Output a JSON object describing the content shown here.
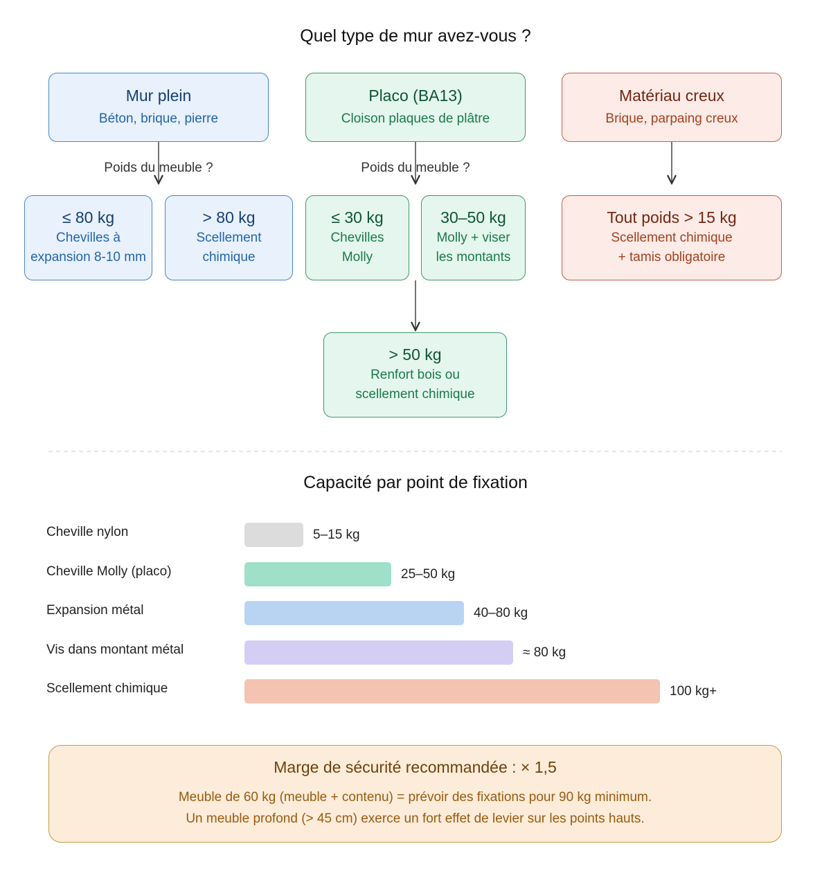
{
  "flowchart": {
    "title": "Quel type de mur avez-vous ?",
    "walls": [
      {
        "title": "Mur plein",
        "subtitle": "Béton, brique, pierre"
      },
      {
        "title": "Placo (BA13)",
        "subtitle": "Cloison plaques de plâtre"
      },
      {
        "title": "Matériau creux",
        "subtitle": "Brique, parpaing creux"
      }
    ],
    "edge_labels": [
      "Poids du meuble ?",
      "Poids du meuble ?"
    ],
    "outcomes": [
      {
        "title": "≤ 80 kg",
        "lines": [
          "Chevilles à",
          "expansion 8-10 mm"
        ]
      },
      {
        "title": "> 80 kg",
        "lines": [
          "Scellement",
          "chimique"
        ]
      },
      {
        "title": "≤ 30 kg",
        "lines": [
          "Chevilles",
          "Molly"
        ]
      },
      {
        "title": "30–50 kg",
        "lines": [
          "Molly + viser",
          "les montants"
        ]
      },
      {
        "title": "Tout poids > 15 kg",
        "lines": [
          "Scellement chimique",
          "+ tamis obligatoire"
        ]
      },
      {
        "title": "> 50 kg",
        "lines": [
          "Renfort bois ou",
          "scellement chimique"
        ]
      }
    ]
  },
  "capacity": {
    "title": "Capacité par point de fixation",
    "rows": [
      {
        "label": "Cheville nylon",
        "range": "5–15 kg"
      },
      {
        "label": "Cheville Molly (placo)",
        "range": "25–50 kg"
      },
      {
        "label": "Expansion métal",
        "range": "40–80 kg"
      },
      {
        "label": "Vis dans montant métal",
        "range": "≈ 80 kg"
      },
      {
        "label": "Scellement chimique",
        "range": "100 kg+"
      }
    ]
  },
  "note": {
    "title": "Marge de sécurité recommandée : × 1,5",
    "lines": [
      "Meuble de 60 kg (meuble + contenu) = prévoir des fixations pour 90 kg minimum.",
      "Un meuble profond (> 45 cm) exerce un fort effet de levier sur les points hauts."
    ]
  }
}
